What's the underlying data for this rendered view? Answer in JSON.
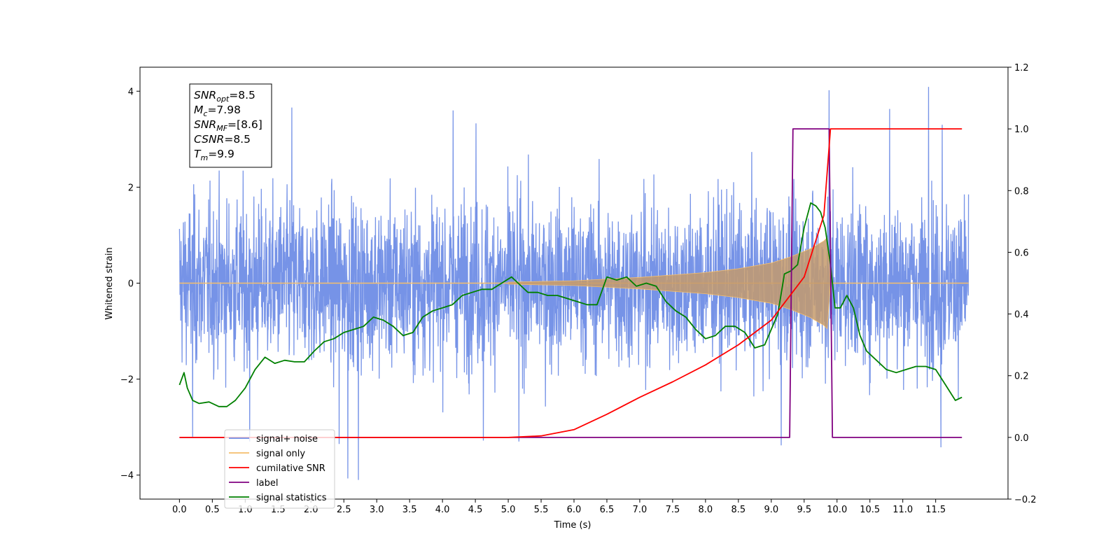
{
  "chart_data": {
    "type": "line",
    "xlabel": "Time (s)",
    "ylabel": "Whitened strain",
    "xlim": [
      -0.6,
      12.6
    ],
    "ylim": [
      -4.5,
      4.5
    ],
    "y2lim": [
      -0.2,
      1.2
    ],
    "x_ticks": [
      "0.0",
      "0.5",
      "1.0",
      "1.5",
      "2.0",
      "2.5",
      "3.0",
      "3.5",
      "4.0",
      "4.5",
      "5.0",
      "5.5",
      "6.0",
      "6.5",
      "7.0",
      "7.5",
      "8.0",
      "8.5",
      "9.0",
      "9.5",
      "10.0",
      "10.5",
      "11.0",
      "11.5"
    ],
    "y_ticks": [
      "−4",
      "−2",
      "0",
      "2",
      "4"
    ],
    "y2_ticks": [
      "−0.2",
      "0.0",
      "0.2",
      "0.4",
      "0.6",
      "0.8",
      "1.0",
      "1.2"
    ],
    "grid": false,
    "legend_position": "lower-left",
    "annotation": {
      "lines": [
        {
          "base": "SNR",
          "sub": "opt",
          "value": "=8.5"
        },
        {
          "base": "M",
          "sub": "c",
          "value": "=7.98"
        },
        {
          "base": "SNR",
          "sub": "MF",
          "value": "=[8.6]"
        },
        {
          "base": "CSNR",
          "sub": "",
          "value": "=8.5"
        },
        {
          "base": "T",
          "sub": "m",
          "value": "=9.9"
        }
      ]
    },
    "series": [
      {
        "name": "signal+ noise",
        "color": "#6f8de6",
        "axis": "left",
        "x_range": [
          0.0,
          12.0
        ],
        "amplitude_typical": 2.4,
        "extreme_spikes": [
          {
            "x": 1.71,
            "y": 3.66
          },
          {
            "x": 4.16,
            "y": 3.6
          },
          {
            "x": 4.51,
            "y": 3.33
          },
          {
            "x": 9.88,
            "y": 4.02
          },
          {
            "x": 10.8,
            "y": 3.63
          },
          {
            "x": 11.39,
            "y": 4.09
          },
          {
            "x": 11.6,
            "y": 3.3
          },
          {
            "x": 2.72,
            "y": -4.1
          },
          {
            "x": 2.56,
            "y": -4.07
          },
          {
            "x": 2.43,
            "y": -3.35
          },
          {
            "x": 11.58,
            "y": -3.42
          },
          {
            "x": 9.15,
            "y": -3.38
          },
          {
            "x": 5.16,
            "y": -3.3
          },
          {
            "x": 4.62,
            "y": -3.28
          },
          {
            "x": 1.07,
            "y": -3.3
          },
          {
            "x": 0.2,
            "y": -3.2
          }
        ]
      },
      {
        "name": "signal only",
        "color": "#f5be6b",
        "axis": "left",
        "envelope": [
          [
            5.0,
            0.02
          ],
          [
            6.0,
            0.05
          ],
          [
            7.0,
            0.12
          ],
          [
            8.0,
            0.22
          ],
          [
            8.5,
            0.3
          ],
          [
            9.0,
            0.42
          ],
          [
            9.3,
            0.55
          ],
          [
            9.6,
            0.72
          ],
          [
            9.8,
            0.88
          ],
          [
            9.85,
            0.95
          ],
          [
            9.9,
            0.02
          ]
        ]
      },
      {
        "name": "cumilative SNR",
        "color": "#ff0000",
        "axis": "right",
        "x": [
          0.0,
          5.0,
          5.5,
          6.0,
          6.5,
          7.0,
          7.5,
          8.0,
          8.5,
          9.0,
          9.5,
          9.8,
          9.9,
          10.0,
          11.5,
          11.9
        ],
        "y": [
          0.0,
          0.0,
          0.005,
          0.025,
          0.075,
          0.13,
          0.18,
          0.235,
          0.3,
          0.38,
          0.52,
          0.72,
          1.0,
          1.0,
          1.0,
          1.0
        ]
      },
      {
        "name": "label",
        "color": "#800080",
        "axis": "right",
        "x": [
          0.0,
          9.28,
          9.33,
          9.88,
          9.93,
          11.9
        ],
        "y": [
          0.0,
          0.0,
          1.0,
          1.0,
          0.0,
          0.0
        ]
      },
      {
        "name": "signal statistics",
        "color": "#008000",
        "axis": "right",
        "x": [
          0.0,
          0.07,
          0.12,
          0.2,
          0.3,
          0.45,
          0.6,
          0.72,
          0.85,
          1.0,
          1.15,
          1.3,
          1.45,
          1.6,
          1.75,
          1.9,
          2.05,
          2.2,
          2.35,
          2.5,
          2.65,
          2.8,
          2.95,
          3.1,
          3.25,
          3.4,
          3.55,
          3.7,
          3.85,
          4.0,
          4.15,
          4.3,
          4.45,
          4.6,
          4.75,
          4.9,
          5.05,
          5.15,
          5.3,
          5.45,
          5.6,
          5.75,
          5.9,
          6.05,
          6.2,
          6.35,
          6.5,
          6.65,
          6.8,
          6.95,
          7.1,
          7.25,
          7.4,
          7.55,
          7.7,
          7.85,
          8.0,
          8.15,
          8.3,
          8.45,
          8.6,
          8.75,
          8.9,
          9.0,
          9.1,
          9.2,
          9.3,
          9.4,
          9.5,
          9.6,
          9.68,
          9.75,
          9.82,
          9.9,
          9.97,
          10.05,
          10.15,
          10.25,
          10.35,
          10.45,
          10.6,
          10.75,
          10.9,
          11.05,
          11.2,
          11.35,
          11.5,
          11.65,
          11.8,
          11.9
        ],
        "y": [
          0.17,
          0.21,
          0.16,
          0.12,
          0.11,
          0.115,
          0.1,
          0.1,
          0.12,
          0.16,
          0.22,
          0.26,
          0.24,
          0.25,
          0.245,
          0.245,
          0.28,
          0.31,
          0.32,
          0.34,
          0.35,
          0.36,
          0.39,
          0.38,
          0.36,
          0.33,
          0.34,
          0.39,
          0.41,
          0.42,
          0.43,
          0.46,
          0.47,
          0.48,
          0.48,
          0.5,
          0.52,
          0.5,
          0.47,
          0.47,
          0.46,
          0.46,
          0.45,
          0.44,
          0.43,
          0.43,
          0.52,
          0.51,
          0.52,
          0.49,
          0.5,
          0.49,
          0.44,
          0.41,
          0.39,
          0.35,
          0.32,
          0.33,
          0.36,
          0.36,
          0.34,
          0.29,
          0.3,
          0.35,
          0.4,
          0.53,
          0.54,
          0.56,
          0.68,
          0.76,
          0.75,
          0.73,
          0.68,
          0.56,
          0.42,
          0.42,
          0.46,
          0.42,
          0.33,
          0.28,
          0.25,
          0.22,
          0.21,
          0.22,
          0.23,
          0.23,
          0.22,
          0.17,
          0.12,
          0.13
        ]
      }
    ],
    "legend": [
      {
        "label": "signal+ noise",
        "color": "#6f8de6"
      },
      {
        "label": "signal only",
        "color": "#f5be6b"
      },
      {
        "label": "cumilative SNR",
        "color": "#ff0000"
      },
      {
        "label": "label",
        "color": "#800080"
      },
      {
        "label": "signal statistics",
        "color": "#008000"
      }
    ]
  }
}
